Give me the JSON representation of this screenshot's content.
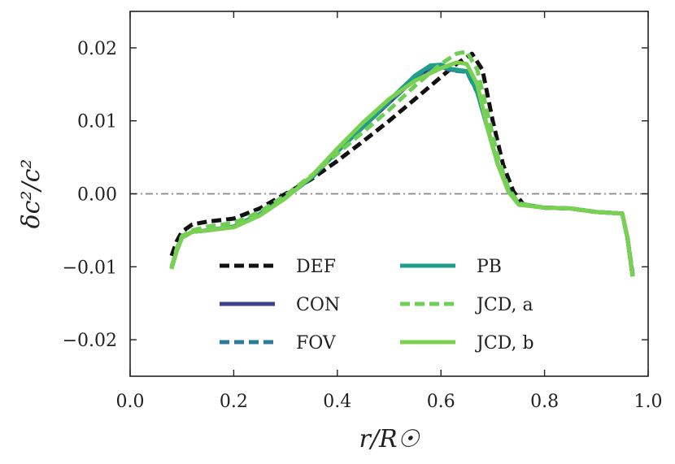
{
  "chart_data": {
    "type": "line",
    "xlabel": "r/R☉",
    "ylabel": "δc²/c²",
    "xlim": [
      0.0,
      1.0
    ],
    "ylim": [
      -0.025,
      0.025
    ],
    "xticks": [
      0.0,
      0.2,
      0.4,
      0.6,
      0.8,
      1.0
    ],
    "xtick_labels": [
      "0.0",
      "0.2",
      "0.4",
      "0.6",
      "0.8",
      "1.0"
    ],
    "yticks": [
      -0.02,
      -0.01,
      0.0,
      0.01,
      0.02
    ],
    "ytick_labels": [
      "−0.02",
      "−0.01",
      "0.00",
      "0.01",
      "0.02"
    ],
    "reference_line": {
      "y": 0.0,
      "style": "dash-dot",
      "color": "#888888"
    },
    "legend_position": "lower-center",
    "series": [
      {
        "name": "DEF",
        "color": "#111111",
        "dash": "dashed",
        "x": [
          0.08,
          0.09,
          0.1,
          0.12,
          0.15,
          0.2,
          0.25,
          0.3,
          0.35,
          0.4,
          0.45,
          0.5,
          0.55,
          0.6,
          0.63,
          0.66,
          0.68,
          0.7,
          0.72,
          0.74,
          0.76,
          0.8,
          0.85,
          0.9,
          0.95,
          0.96,
          0.97
        ],
        "values": [
          -0.0085,
          -0.0065,
          -0.0052,
          -0.0042,
          -0.0038,
          -0.0034,
          -0.002,
          0.0,
          0.002,
          0.0045,
          0.0072,
          0.01,
          0.013,
          0.016,
          0.0178,
          0.0192,
          0.017,
          0.01,
          0.004,
          0.0003,
          -0.0015,
          -0.0019,
          -0.002,
          -0.0025,
          -0.0027,
          -0.006,
          -0.011
        ]
      },
      {
        "name": "CON",
        "color": "#3b3f8c",
        "dash": "solid",
        "x": [
          0.08,
          0.09,
          0.1,
          0.12,
          0.15,
          0.2,
          0.25,
          0.3,
          0.35,
          0.4,
          0.45,
          0.5,
          0.55,
          0.58,
          0.6,
          0.62,
          0.65,
          0.67,
          0.69,
          0.71,
          0.73,
          0.75,
          0.8,
          0.85,
          0.9,
          0.95,
          0.96,
          0.97
        ],
        "values": [
          -0.0102,
          -0.0078,
          -0.006,
          -0.0052,
          -0.005,
          -0.0045,
          -0.0028,
          -0.0005,
          0.0022,
          0.0058,
          0.0092,
          0.0125,
          0.0158,
          0.0173,
          0.0175,
          0.017,
          0.0168,
          0.014,
          0.009,
          0.004,
          0.0005,
          -0.0014,
          -0.0019,
          -0.002,
          -0.0025,
          -0.0027,
          -0.006,
          -0.0113
        ]
      },
      {
        "name": "FOV",
        "color": "#2a7d9a",
        "dash": "dashed",
        "x": [
          0.08,
          0.09,
          0.1,
          0.12,
          0.15,
          0.2,
          0.25,
          0.3,
          0.35,
          0.4,
          0.45,
          0.5,
          0.55,
          0.58,
          0.6,
          0.62,
          0.65,
          0.67,
          0.69,
          0.71,
          0.73,
          0.75,
          0.8,
          0.85,
          0.9,
          0.95,
          0.96,
          0.97
        ],
        "values": [
          -0.0102,
          -0.0078,
          -0.006,
          -0.0052,
          -0.005,
          -0.0045,
          -0.0028,
          -0.0005,
          0.0022,
          0.0058,
          0.0092,
          0.0125,
          0.0158,
          0.0172,
          0.0174,
          0.0169,
          0.0167,
          0.0139,
          0.009,
          0.004,
          0.0005,
          -0.0014,
          -0.0019,
          -0.002,
          -0.0025,
          -0.0027,
          -0.006,
          -0.0113
        ]
      },
      {
        "name": "PB",
        "color": "#1f9e89",
        "dash": "solid",
        "x": [
          0.08,
          0.09,
          0.1,
          0.12,
          0.15,
          0.2,
          0.25,
          0.3,
          0.35,
          0.4,
          0.45,
          0.5,
          0.55,
          0.58,
          0.6,
          0.62,
          0.65,
          0.67,
          0.69,
          0.71,
          0.73,
          0.75,
          0.8,
          0.85,
          0.9,
          0.95,
          0.96,
          0.97
        ],
        "values": [
          -0.0102,
          -0.0078,
          -0.006,
          -0.0052,
          -0.005,
          -0.0045,
          -0.0028,
          -0.0005,
          0.0022,
          0.0058,
          0.0092,
          0.0128,
          0.0162,
          0.0176,
          0.0177,
          0.0171,
          0.0168,
          0.014,
          0.009,
          0.004,
          0.0005,
          -0.0014,
          -0.0019,
          -0.002,
          -0.0025,
          -0.0027,
          -0.006,
          -0.0113
        ]
      },
      {
        "name": "JCD, a",
        "color": "#6ece58",
        "dash": "dashed",
        "x": [
          0.08,
          0.09,
          0.1,
          0.12,
          0.15,
          0.2,
          0.25,
          0.3,
          0.35,
          0.4,
          0.45,
          0.5,
          0.55,
          0.6,
          0.63,
          0.65,
          0.67,
          0.69,
          0.71,
          0.73,
          0.75,
          0.8,
          0.85,
          0.9,
          0.95,
          0.96,
          0.97
        ],
        "values": [
          -0.01,
          -0.0075,
          -0.0058,
          -0.005,
          -0.0045,
          -0.004,
          -0.0025,
          -0.0002,
          0.0025,
          0.0055,
          0.0085,
          0.0115,
          0.0148,
          0.0178,
          0.0192,
          0.0195,
          0.017,
          0.011,
          0.005,
          0.0008,
          -0.0013,
          -0.0019,
          -0.002,
          -0.0025,
          -0.0027,
          -0.006,
          -0.0113
        ]
      },
      {
        "name": "JCD, b",
        "color": "#7ad151",
        "dash": "solid",
        "x": [
          0.08,
          0.09,
          0.1,
          0.12,
          0.15,
          0.2,
          0.25,
          0.3,
          0.35,
          0.4,
          0.45,
          0.5,
          0.55,
          0.6,
          0.63,
          0.65,
          0.67,
          0.69,
          0.71,
          0.73,
          0.75,
          0.8,
          0.85,
          0.9,
          0.95,
          0.96,
          0.97
        ],
        "values": [
          -0.0103,
          -0.0078,
          -0.006,
          -0.0052,
          -0.005,
          -0.0046,
          -0.003,
          -0.0006,
          0.0024,
          0.0062,
          0.0098,
          0.013,
          0.0155,
          0.0172,
          0.018,
          0.0178,
          0.015,
          0.009,
          0.004,
          0.0003,
          -0.0015,
          -0.0019,
          -0.002,
          -0.0025,
          -0.0027,
          -0.006,
          -0.0113
        ]
      }
    ]
  }
}
